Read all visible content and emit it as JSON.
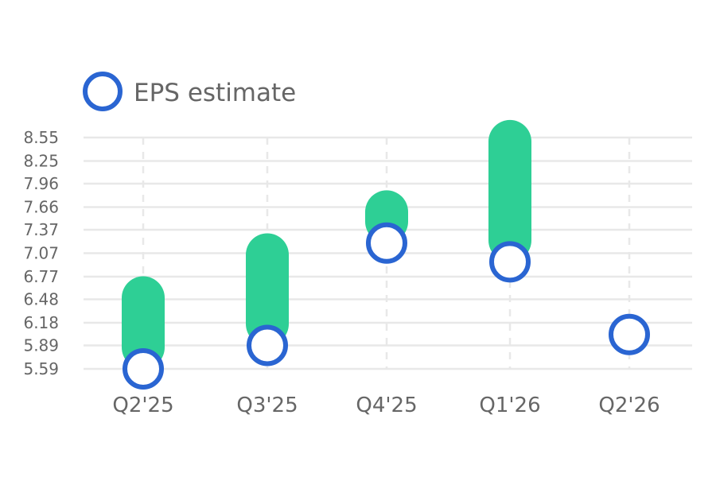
{
  "chart_data": {
    "type": "scatter",
    "categories": [
      "Q2'25",
      "Q3'25",
      "Q4'25",
      "Q1'26",
      "Q2'26"
    ],
    "yticks": [
      "5.59",
      "5.89",
      "6.18",
      "6.48",
      "6.77",
      "7.07",
      "7.37",
      "7.66",
      "7.96",
      "8.25",
      "8.55"
    ],
    "ylim": [
      5.59,
      8.55
    ],
    "grid": true,
    "legend": {
      "position": "top-left",
      "entries": [
        "EPS estimate"
      ]
    },
    "series": [
      {
        "name": "EPS estimate",
        "kind": "circle-marker",
        "values": [
          5.59,
          5.89,
          7.2,
          6.96,
          6.03
        ]
      },
      {
        "kind": "range-bar",
        "low": [
          5.59,
          5.89,
          7.2,
          6.96,
          null
        ],
        "high": [
          6.5,
          7.05,
          7.6,
          8.5,
          null
        ]
      }
    ],
    "colors": {
      "estimate": "#2a65d2",
      "range": "#2ecf95",
      "grid": "#e8e8e8",
      "text": "#666666"
    }
  }
}
